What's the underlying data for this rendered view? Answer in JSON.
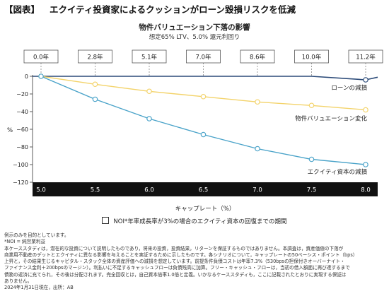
{
  "header": {
    "tag": "【図表】",
    "title": "エクイティ投資家によるクッションがローン毀損リスクを低減"
  },
  "chart_data": {
    "type": "line",
    "title": "物件バリュエーション下落の影響",
    "subtitle": "想定65% LTV、5.0% 還元利回り",
    "xlabel": "キャップレート（%）",
    "ylabel": "%",
    "x": [
      "5.0",
      "5.5",
      "6.0",
      "6.5",
      "7.0",
      "7.5",
      "8.0"
    ],
    "xlim": [
      5.0,
      8.0
    ],
    "ylim": [
      -120,
      0
    ],
    "yticks": [
      "0",
      "−20",
      "−40",
      "−60",
      "−80",
      "−100",
      "−120"
    ],
    "ytick_values": [
      0,
      -20,
      -40,
      -60,
      -80,
      -100,
      -120
    ],
    "grid": false,
    "recovery_years": [
      "0.0年",
      "2.8年",
      "5.1年",
      "7.0年",
      "8.6年",
      "10.0年",
      "11.2年"
    ],
    "series": [
      {
        "name": "ローンの減損",
        "color": "#2b4a78",
        "marker": false,
        "values": [
          0,
          0,
          0,
          0,
          0,
          0,
          -4
        ]
      },
      {
        "name": "物件バリュエーション変化",
        "color": "#f3d36a",
        "marker": true,
        "values": [
          0,
          -9,
          -17,
          -23,
          -29,
          -33,
          -38
        ]
      },
      {
        "name": "エクイティ資本の減損",
        "color": "#4aa3c9",
        "marker": true,
        "values": [
          0,
          -26,
          -48,
          -66,
          -82,
          -94,
          -100
        ]
      }
    ]
  },
  "legend": {
    "label": "NOI*年率成長率が3%の場合のエクイティ資本の回復までの期間"
  },
  "notes": [
    "例示のみを目的としています。",
    "*NOI = 純営業利益",
    "本ケーススタディは，潜在的な投資について説明したものであり，将来の投資，投資結果，リターンを保証するものではありません。本調査は，資産価値の下落が",
    "商業用不動産のデットとエクイティに異なる影響を与えることを実証するために示したものです。各シナリオについて，キャップレートの50ベーシス・ポイント（bps）",
    "上昇と，その結果生じるキャピタル・スタック全体の資産評価への減損を想定しています。前提条件負債コストは年率7.3%（530bpsの担保付きオーバーナイト・",
    "ファイナンス金利＋200bpsのマージン）。利払いに不足するキャッシュフローは負債残高に加算。フリー・キャッシュ・フローは，当初の借入額面に再び達するまで",
    "債務の返済に充てられ，その後は分配されます。完全回収とは，自己資本倍率1.0倍と定義。いかなるケーススタディも，ここに記載されたとおりに実現する保証は",
    "ありません。",
    "2024年1月31日現在，出所：AB"
  ]
}
